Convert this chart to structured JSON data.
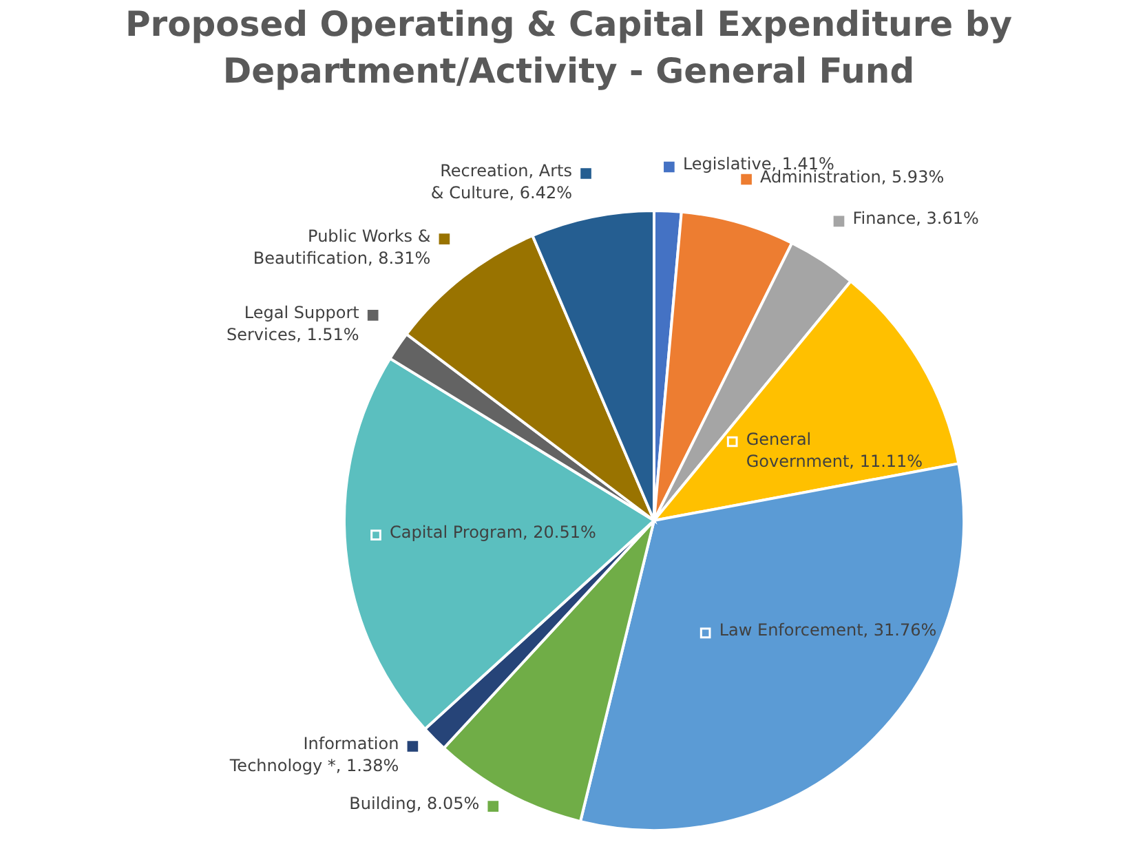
{
  "chart_data": {
    "type": "pie",
    "title": "Proposed Operating & Capital Expenditure by Department/Activity - General Fund",
    "categories": [
      "Legislative",
      "Administration",
      "Finance",
      "General Government",
      "Law Enforcement",
      "Building",
      "Information Technology *",
      "Capital Program",
      "Legal Support Services",
      "Public Works & Beautification",
      "Recreation, Arts & Culture"
    ],
    "values": [
      1.41,
      5.93,
      3.61,
      11.11,
      31.76,
      8.05,
      1.38,
      20.51,
      1.51,
      8.31,
      6.42
    ],
    "value_labels": [
      "1.41%",
      "5.93%",
      "3.61%",
      "11.11%",
      "31.76%",
      "8.05%",
      "1.38%",
      "20.51%",
      "1.51%",
      "8.31%",
      "6.42%"
    ],
    "legend": "top right",
    "colors": [
      "#4472c4",
      "#ed7d31",
      "#a5a5a5",
      "#ffc000",
      "#5b9bd5",
      "#70ad47",
      "#264478",
      "#5bbfbf",
      "#636363",
      "#997300",
      "#255e91"
    ]
  }
}
